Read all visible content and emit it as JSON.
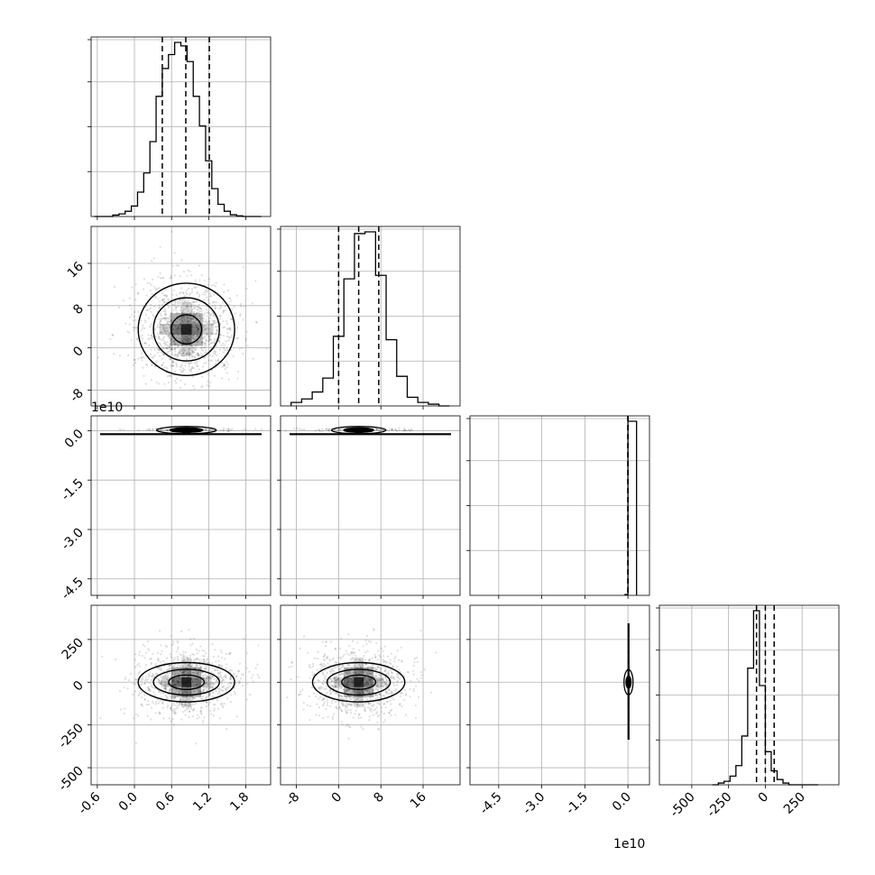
{
  "chart_data": [
    {
      "type": "histogram",
      "panel": "diag-0",
      "xlim": [
        -0.7,
        2.2
      ],
      "bins": [
        -0.65,
        -0.55,
        -0.45,
        -0.35,
        -0.25,
        -0.15,
        -0.05,
        0.05,
        0.15,
        0.25,
        0.35,
        0.45,
        0.55,
        0.65,
        0.75,
        0.85,
        0.95,
        1.05,
        1.15,
        1.25,
        1.35,
        1.45,
        1.55,
        1.65,
        1.75,
        1.85,
        1.95,
        2.05
      ],
      "counts": [
        0,
        0,
        0,
        0.008,
        0.015,
        0.03,
        0.06,
        0.14,
        0.25,
        0.43,
        0.69,
        0.85,
        0.93,
        1.0,
        0.98,
        0.89,
        0.69,
        0.52,
        0.32,
        0.16,
        0.07,
        0.03,
        0.01,
        0.004,
        0,
        0,
        0
      ],
      "quantiles": [
        0.45,
        0.83,
        1.21
      ],
      "xticks": [
        "-0.6",
        "0.0",
        "0.6",
        "1.2",
        "1.8"
      ],
      "xtick_values": [
        -0.6,
        0.0,
        0.6,
        1.2,
        1.8
      ],
      "grid": true
    },
    {
      "type": "histogram",
      "panel": "diag-1",
      "xlim": [
        -11,
        23
      ],
      "bins": [
        -9,
        -7,
        -5,
        -3,
        -1,
        1,
        3,
        5,
        7,
        9,
        11,
        13,
        15,
        17,
        19,
        21
      ],
      "counts": [
        0.02,
        0.04,
        0.08,
        0.16,
        0.4,
        0.73,
        0.99,
        1.0,
        0.75,
        0.38,
        0.17,
        0.05,
        0.02,
        0.01,
        0
      ],
      "quantiles": [
        0.0,
        3.8,
        7.6
      ],
      "xticks": [
        "-8",
        "0",
        "8",
        "16"
      ],
      "xtick_values": [
        -8,
        0,
        8,
        16
      ],
      "grid": true
    },
    {
      "type": "histogram",
      "panel": "diag-2",
      "xlim": [
        -5.5,
        0.75
      ],
      "x_offset": "1e10",
      "bins": [
        -0.1,
        0.0,
        0.3
      ],
      "counts": [
        0.005,
        1.0
      ],
      "quantiles": [
        0.0,
        0.0,
        0.0
      ],
      "xticks": [
        "-4.5",
        "-3.0",
        "-1.5",
        "0.0"
      ],
      "xtick_values": [
        -4.5,
        -3.0,
        -1.5,
        0.0
      ],
      "grid": true
    },
    {
      "type": "histogram",
      "panel": "diag-3",
      "xlim": [
        -720,
        500
      ],
      "bins": [
        -360,
        -320,
        -280,
        -240,
        -200,
        -160,
        -120,
        -80,
        -40,
        0,
        40,
        80,
        120,
        160,
        200,
        240,
        280,
        320,
        360
      ],
      "counts": [
        0,
        0.01,
        0.02,
        0.05,
        0.11,
        0.28,
        0.67,
        1.0,
        0.57,
        0.19,
        0.08,
        0.03,
        0.01,
        0,
        0,
        0,
        0,
        0
      ],
      "quantiles": [
        -60,
        0,
        60
      ],
      "xticks": [
        "-500",
        "-250",
        "0",
        "250"
      ],
      "xtick_values": [
        -500,
        -250,
        0,
        250
      ],
      "grid": true
    },
    {
      "type": "scatter-contour",
      "panel": "p1-0",
      "x_center": 0.84,
      "y_center": 3.5,
      "x_sigma": 0.41,
      "y_sigma": 4.6,
      "xlim": [
        -0.7,
        2.2
      ],
      "ylim": [
        -11,
        23
      ],
      "yticks": [
        "-8",
        "0",
        "8",
        "16"
      ],
      "ytick_values": [
        -8,
        0,
        8,
        16
      ],
      "grid": true
    },
    {
      "type": "scatter-contour",
      "panel": "p2-0",
      "x_center": 0.84,
      "y_center": 0.03,
      "x_sigma": 0.41,
      "y_sigma": 0.03,
      "xlim": [
        -0.7,
        2.2
      ],
      "ylim": [
        -5.0,
        0.45
      ],
      "y_offset": "1e10",
      "yticks": [
        "0.0",
        "-1.5",
        "-3.0",
        "-4.5"
      ],
      "ytick_values": [
        0.0,
        -1.5,
        -3.0,
        -4.5
      ],
      "grid": true
    },
    {
      "type": "scatter-contour",
      "panel": "p2-1",
      "x_center": 3.8,
      "y_center": 0.03,
      "x_sigma": 4.6,
      "y_sigma": 0.03,
      "xlim": [
        -11,
        23
      ],
      "ylim": [
        -5.0,
        0.45
      ],
      "grid": true
    },
    {
      "type": "scatter-contour",
      "panel": "p3-0",
      "x_center": 0.84,
      "y_center": 0,
      "x_sigma": 0.41,
      "y_sigma": 100,
      "xlim": [
        -0.7,
        2.2
      ],
      "ylim": [
        -600,
        450
      ],
      "yticks": [
        "250",
        "0",
        "-250",
        "-500"
      ],
      "ytick_values": [
        250,
        0,
        -250,
        -500
      ],
      "grid": true
    },
    {
      "type": "scatter-contour",
      "panel": "p3-1",
      "x_center": 3.8,
      "y_center": 0,
      "x_sigma": 4.6,
      "y_sigma": 100,
      "xlim": [
        -11,
        23
      ],
      "ylim": [
        -600,
        450
      ],
      "grid": true
    },
    {
      "type": "scatter-contour",
      "panel": "p3-2",
      "x_center": 0.02,
      "y_center": 0,
      "x_sigma": 0.01,
      "y_sigma": 100,
      "xlim": [
        -5.5,
        0.75
      ],
      "ylim": [
        -600,
        450
      ],
      "grid": true
    }
  ],
  "offsets": {
    "left_offset": "1e10",
    "bottom_offset": "1e10"
  }
}
